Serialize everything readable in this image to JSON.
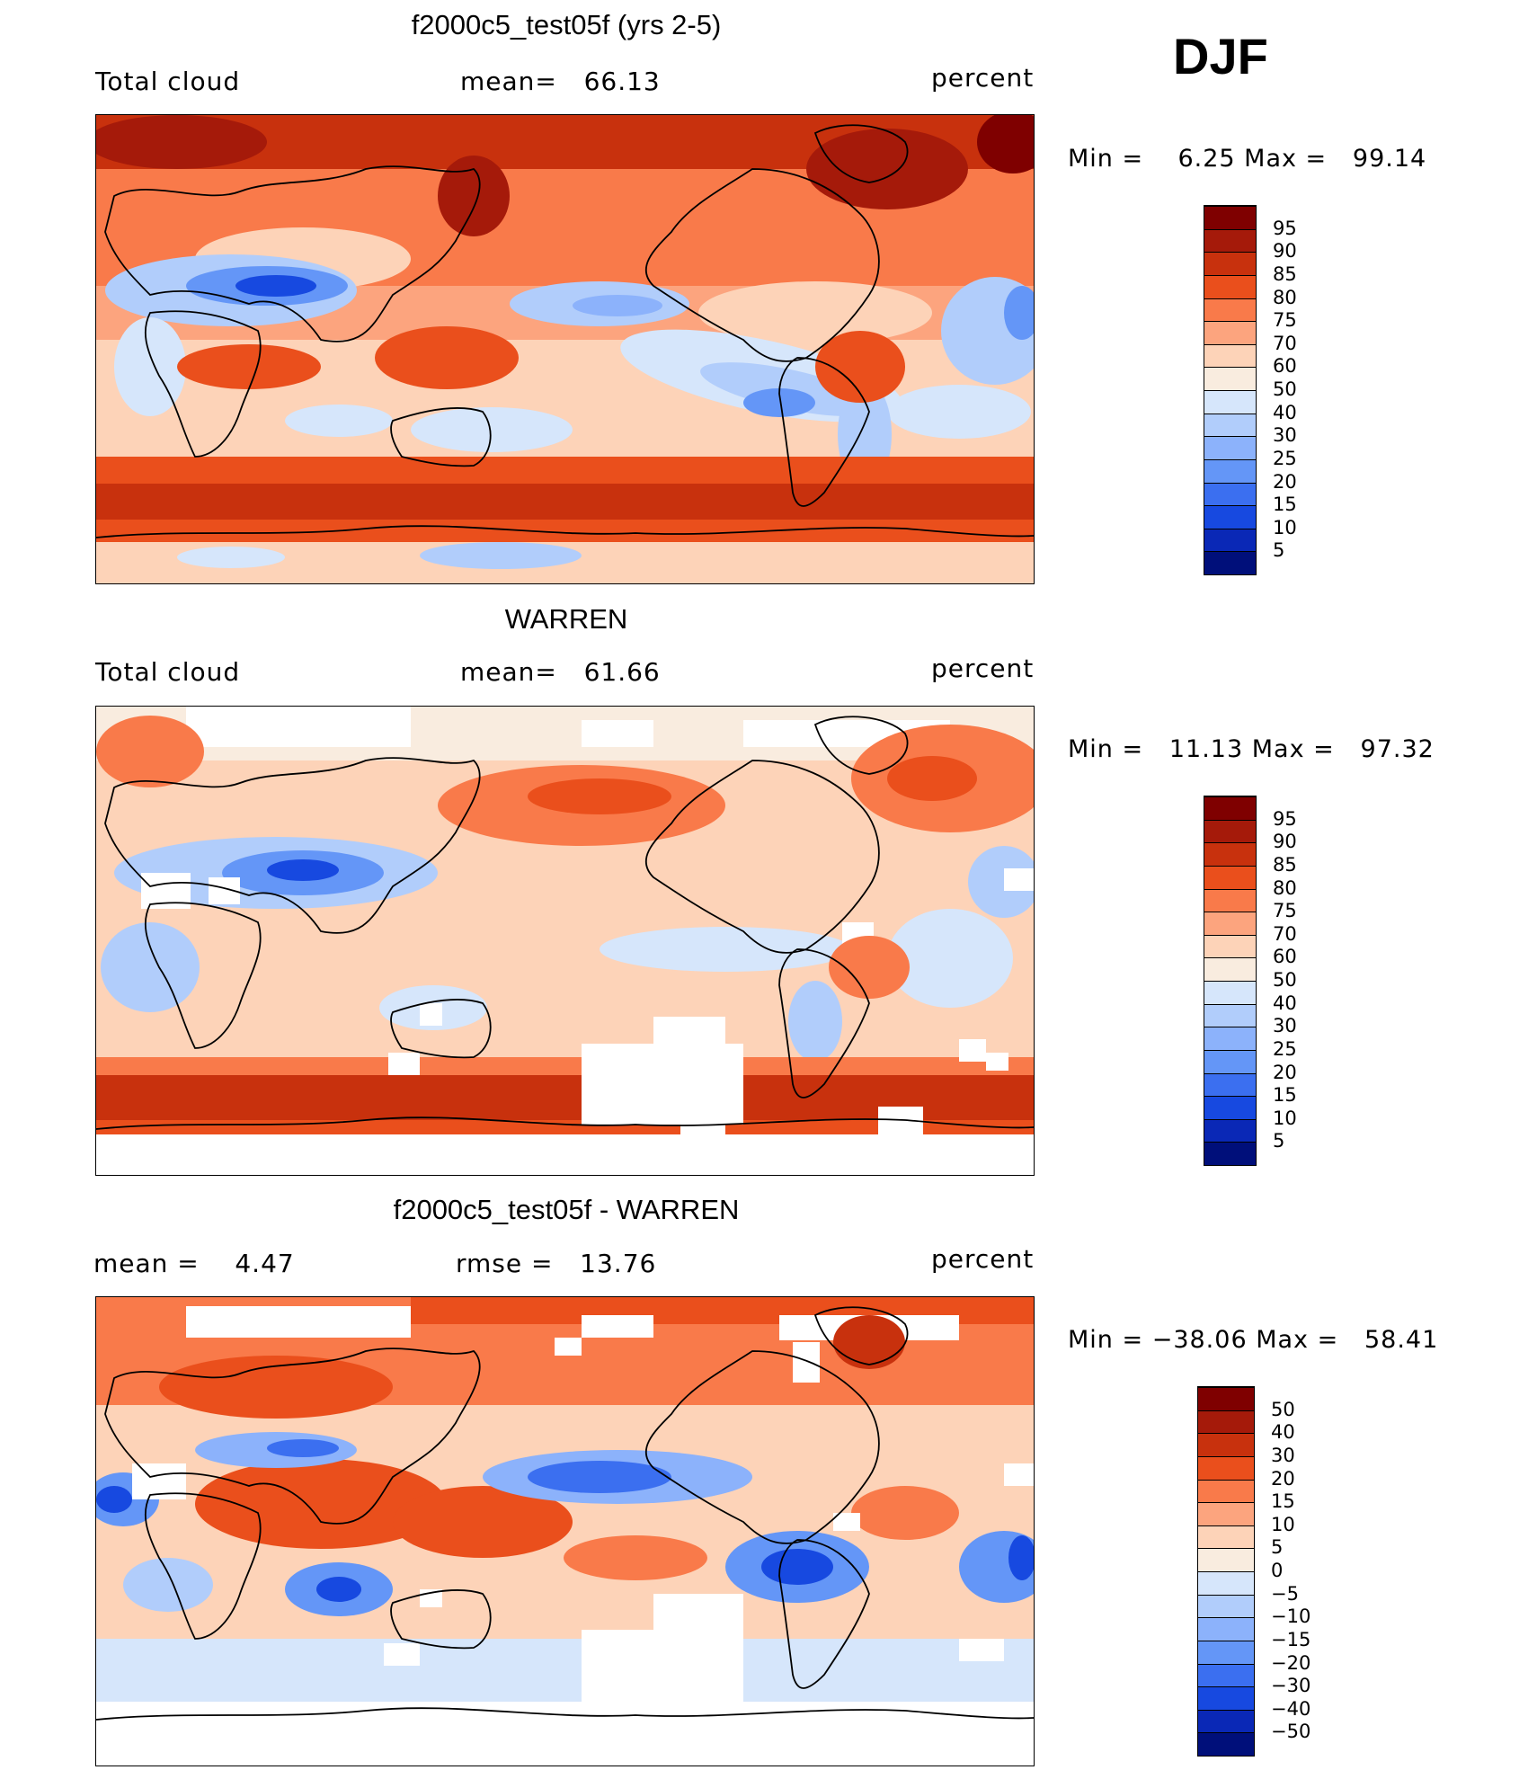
{
  "season": "DJF",
  "panels": [
    {
      "title": "f2000c5_test05f (yrs 2-5)",
      "left_label": "Total cloud",
      "center_label": "mean=   66.13",
      "right_label": "percent",
      "minmax": "Min =    6.25 Max =   99.14",
      "colorbar": {
        "colors": [
          "#7f0000",
          "#a51a0a",
          "#c8310d",
          "#ea4f1c",
          "#f97a4a",
          "#fca47e",
          "#fdd3b8",
          "#f9ecdf",
          "#d6e6fb",
          "#b1cdfb",
          "#8cb2fb",
          "#6496f7",
          "#3b6ff0",
          "#1749e0",
          "#0a28b6",
          "#000f7a"
        ],
        "labels": [
          "95",
          "90",
          "85",
          "80",
          "75",
          "70",
          "60",
          "50",
          "40",
          "30",
          "25",
          "20",
          "15",
          "10",
          "5"
        ]
      }
    },
    {
      "title": "WARREN",
      "left_label": "Total cloud",
      "center_label": "mean=   61.66",
      "right_label": "percent",
      "minmax": "Min =   11.13 Max =   97.32",
      "colorbar": {
        "colors": [
          "#7f0000",
          "#a51a0a",
          "#c8310d",
          "#ea4f1c",
          "#f97a4a",
          "#fca47e",
          "#fdd3b8",
          "#f9ecdf",
          "#d6e6fb",
          "#b1cdfb",
          "#8cb2fb",
          "#6496f7",
          "#3b6ff0",
          "#1749e0",
          "#0a28b6",
          "#000f7a"
        ],
        "labels": [
          "95",
          "90",
          "85",
          "80",
          "75",
          "70",
          "60",
          "50",
          "40",
          "30",
          "25",
          "20",
          "15",
          "10",
          "5"
        ]
      }
    },
    {
      "title": "f2000c5_test05f - WARREN",
      "left_label": "mean =    4.47",
      "center_label": "rmse =   13.76",
      "right_label": "percent",
      "minmax": "Min = −38.06 Max =   58.41",
      "colorbar": {
        "colors": [
          "#7f0000",
          "#a51a0a",
          "#c8310d",
          "#ea4f1c",
          "#f97a4a",
          "#fca47e",
          "#fdd3b8",
          "#f9ecdf",
          "#d6e6fb",
          "#b1cdfb",
          "#8cb2fb",
          "#6496f7",
          "#3b6ff0",
          "#1749e0",
          "#0a28b6",
          "#000f7a"
        ],
        "labels": [
          "50",
          "40",
          "30",
          "20",
          "15",
          "10",
          "5",
          "0",
          "−5",
          "−10",
          "−15",
          "−20",
          "−30",
          "−40",
          "−50"
        ]
      }
    }
  ],
  "chart_data": [
    {
      "type": "heatmap",
      "title": "f2000c5_test05f (yrs 2-5)",
      "variable": "Total cloud",
      "units": "percent",
      "mean": 66.13,
      "min": 6.25,
      "max": 99.14,
      "contour_levels": [
        5,
        10,
        15,
        20,
        25,
        30,
        40,
        50,
        60,
        70,
        75,
        80,
        85,
        90,
        95
      ]
    },
    {
      "type": "heatmap",
      "title": "WARREN",
      "variable": "Total cloud",
      "units": "percent",
      "mean": 61.66,
      "min": 11.13,
      "max": 97.32,
      "contour_levels": [
        5,
        10,
        15,
        20,
        25,
        30,
        40,
        50,
        60,
        70,
        75,
        80,
        85,
        90,
        95
      ]
    },
    {
      "type": "heatmap",
      "title": "f2000c5_test05f - WARREN",
      "units": "percent",
      "mean": 4.47,
      "rmse": 13.76,
      "min": -38.06,
      "max": 58.41,
      "contour_levels": [
        -50,
        -40,
        -30,
        -20,
        -15,
        -10,
        -5,
        0,
        5,
        10,
        15,
        20,
        30,
        40,
        50
      ]
    }
  ]
}
